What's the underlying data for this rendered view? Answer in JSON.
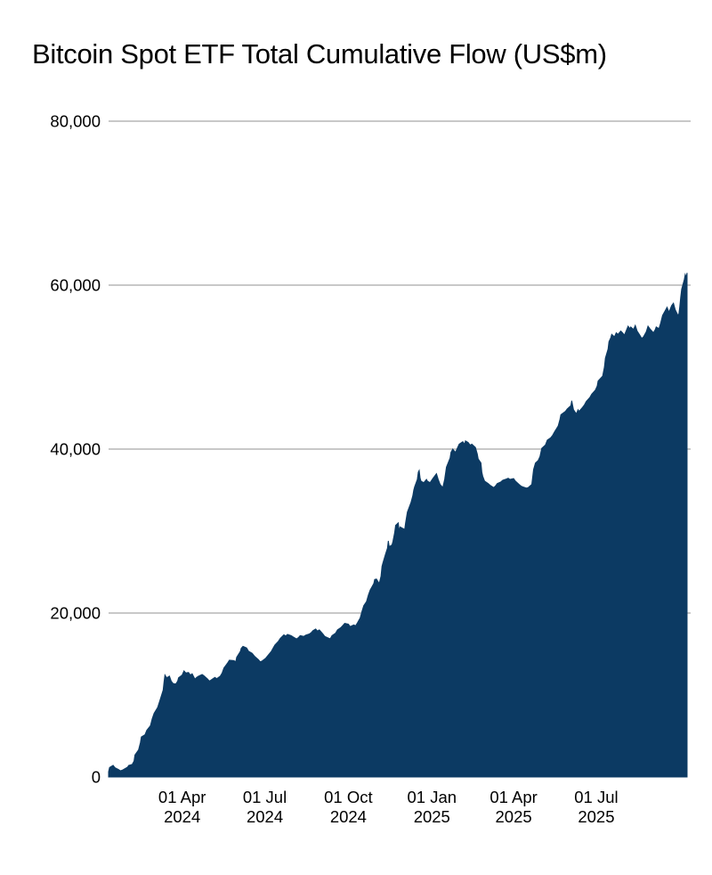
{
  "chart_data": {
    "type": "area",
    "title": "Bitcoin Spot ETF Total Cumulative Flow (US$m)",
    "xlabel": "",
    "ylabel": "",
    "ylim": [
      0,
      80000
    ],
    "x_domain": [
      "2024-01-09",
      "2025-10-10"
    ],
    "grid": "horizontal-only",
    "legend": "none",
    "colors": {
      "fill": "#0C3A63",
      "gridline": "#C8C8C8",
      "text": "#000000",
      "background": "#FFFFFF"
    },
    "y_ticks": [
      {
        "value": 80000,
        "label": "80,000"
      },
      {
        "value": 60000,
        "label": "60,000"
      },
      {
        "value": 40000,
        "label": "40,000"
      },
      {
        "value": 20000,
        "label": "20,000"
      },
      {
        "value": 0,
        "label": "0"
      }
    ],
    "x_ticks": [
      {
        "date": "2024-04-01",
        "line1": "01 Apr",
        "line2": "2024"
      },
      {
        "date": "2024-07-01",
        "line1": "01 Jul",
        "line2": "2024"
      },
      {
        "date": "2024-10-01",
        "line1": "01 Oct",
        "line2": "2024"
      },
      {
        "date": "2025-01-01",
        "line1": "01 Jan",
        "line2": "2025"
      },
      {
        "date": "2025-04-01",
        "line1": "01 Apr",
        "line2": "2025"
      },
      {
        "date": "2025-07-01",
        "line1": "01 Jul",
        "line2": "2025"
      }
    ],
    "series": [
      {
        "name": "Total cumulative flow (US$m)",
        "points": [
          [
            "2024-01-11",
            630
          ],
          [
            "2024-01-12",
            1160
          ],
          [
            "2024-01-16",
            1420
          ],
          [
            "2024-01-18",
            1130
          ],
          [
            "2024-01-22",
            900
          ],
          [
            "2024-01-24",
            760
          ],
          [
            "2024-01-26",
            830
          ],
          [
            "2024-01-30",
            1080
          ],
          [
            "2024-02-01",
            1220
          ],
          [
            "2024-02-02",
            1400
          ],
          [
            "2024-02-06",
            1540
          ],
          [
            "2024-02-08",
            1950
          ],
          [
            "2024-02-09",
            2680
          ],
          [
            "2024-02-13",
            3320
          ],
          [
            "2024-02-15",
            4220
          ],
          [
            "2024-02-16",
            4890
          ],
          [
            "2024-02-20",
            5150
          ],
          [
            "2024-02-22",
            5700
          ],
          [
            "2024-02-26",
            6250
          ],
          [
            "2024-02-28",
            7110
          ],
          [
            "2024-03-01",
            7760
          ],
          [
            "2024-03-05",
            8480
          ],
          [
            "2024-03-07",
            9190
          ],
          [
            "2024-03-11",
            10600
          ],
          [
            "2024-03-12",
            11600
          ],
          [
            "2024-03-13",
            12450
          ],
          [
            "2024-03-15",
            12100
          ],
          [
            "2024-03-18",
            12300
          ],
          [
            "2024-03-20",
            11700
          ],
          [
            "2024-03-22",
            11400
          ],
          [
            "2024-03-25",
            11350
          ],
          [
            "2024-03-27",
            11700
          ],
          [
            "2024-03-28",
            12100
          ],
          [
            "2024-04-01",
            12450
          ],
          [
            "2024-04-03",
            12950
          ],
          [
            "2024-04-05",
            12700
          ],
          [
            "2024-04-08",
            12750
          ],
          [
            "2024-04-10",
            12450
          ],
          [
            "2024-04-12",
            12600
          ],
          [
            "2024-04-15",
            11950
          ],
          [
            "2024-04-17",
            12150
          ],
          [
            "2024-04-19",
            12300
          ],
          [
            "2024-04-23",
            12500
          ],
          [
            "2024-04-25",
            12350
          ],
          [
            "2024-04-29",
            11950
          ],
          [
            "2024-05-01",
            11700
          ],
          [
            "2024-05-03",
            11850
          ],
          [
            "2024-05-07",
            12150
          ],
          [
            "2024-05-09",
            12000
          ],
          [
            "2024-05-13",
            12300
          ],
          [
            "2024-05-15",
            12700
          ],
          [
            "2024-05-17",
            13300
          ],
          [
            "2024-05-21",
            13900
          ],
          [
            "2024-05-23",
            14250
          ],
          [
            "2024-05-28",
            14200
          ],
          [
            "2024-05-30",
            14050
          ],
          [
            "2024-05-31",
            14600
          ],
          [
            "2024-06-04",
            15300
          ],
          [
            "2024-06-05",
            15700
          ],
          [
            "2024-06-07",
            15950
          ],
          [
            "2024-06-11",
            15750
          ],
          [
            "2024-06-13",
            15350
          ],
          [
            "2024-06-17",
            15100
          ],
          [
            "2024-06-20",
            14700
          ],
          [
            "2024-06-24",
            14300
          ],
          [
            "2024-06-26",
            14050
          ],
          [
            "2024-06-28",
            14150
          ],
          [
            "2024-07-02",
            14500
          ],
          [
            "2024-07-05",
            14900
          ],
          [
            "2024-07-08",
            15300
          ],
          [
            "2024-07-10",
            15700
          ],
          [
            "2024-07-12",
            16100
          ],
          [
            "2024-07-16",
            16550
          ],
          [
            "2024-07-18",
            16900
          ],
          [
            "2024-07-22",
            17350
          ],
          [
            "2024-07-24",
            17200
          ],
          [
            "2024-07-26",
            17400
          ],
          [
            "2024-07-30",
            17250
          ],
          [
            "2024-08-01",
            17100
          ],
          [
            "2024-08-05",
            16850
          ],
          [
            "2024-08-07",
            17000
          ],
          [
            "2024-08-09",
            17250
          ],
          [
            "2024-08-13",
            17150
          ],
          [
            "2024-08-15",
            17300
          ],
          [
            "2024-08-19",
            17450
          ],
          [
            "2024-08-21",
            17600
          ],
          [
            "2024-08-23",
            17850
          ],
          [
            "2024-08-26",
            18050
          ],
          [
            "2024-08-28",
            17800
          ],
          [
            "2024-08-30",
            17950
          ],
          [
            "2024-09-03",
            17450
          ],
          [
            "2024-09-05",
            17150
          ],
          [
            "2024-09-09",
            16950
          ],
          [
            "2024-09-11",
            16850
          ],
          [
            "2024-09-13",
            17250
          ],
          [
            "2024-09-17",
            17550
          ],
          [
            "2024-09-19",
            17950
          ],
          [
            "2024-09-23",
            18250
          ],
          [
            "2024-09-25",
            18500
          ],
          [
            "2024-09-27",
            18750
          ],
          [
            "2024-10-01",
            18650
          ],
          [
            "2024-10-03",
            18350
          ],
          [
            "2024-10-07",
            18550
          ],
          [
            "2024-10-09",
            18450
          ],
          [
            "2024-10-11",
            18800
          ],
          [
            "2024-10-14",
            19400
          ],
          [
            "2024-10-16",
            20200
          ],
          [
            "2024-10-18",
            20900
          ],
          [
            "2024-10-21",
            21400
          ],
          [
            "2024-10-23",
            22200
          ],
          [
            "2024-10-25",
            22800
          ],
          [
            "2024-10-29",
            23600
          ],
          [
            "2024-10-30",
            24100
          ],
          [
            "2024-11-01",
            24150
          ],
          [
            "2024-11-04",
            23600
          ],
          [
            "2024-11-06",
            24500
          ],
          [
            "2024-11-07",
            25700
          ],
          [
            "2024-11-08",
            26100
          ],
          [
            "2024-11-11",
            27200
          ],
          [
            "2024-11-13",
            27900
          ],
          [
            "2024-11-14",
            28800
          ],
          [
            "2024-11-15",
            28100
          ],
          [
            "2024-11-18",
            28300
          ],
          [
            "2024-11-19",
            28700
          ],
          [
            "2024-11-21",
            29800
          ],
          [
            "2024-11-22",
            30700
          ],
          [
            "2024-11-25",
            31000
          ],
          [
            "2024-11-26",
            30000
          ],
          [
            "2024-11-27",
            30500
          ],
          [
            "2024-12-02",
            30200
          ],
          [
            "2024-12-03",
            31000
          ],
          [
            "2024-12-05",
            32300
          ],
          [
            "2024-12-09",
            33500
          ],
          [
            "2024-12-11",
            34300
          ],
          [
            "2024-12-12",
            35000
          ],
          [
            "2024-12-13",
            35400
          ],
          [
            "2024-12-16",
            36300
          ],
          [
            "2024-12-17",
            37200
          ],
          [
            "2024-12-18",
            37400
          ],
          [
            "2024-12-19",
            36500
          ],
          [
            "2024-12-20",
            36100
          ],
          [
            "2024-12-23",
            35900
          ],
          [
            "2024-12-26",
            36300
          ],
          [
            "2024-12-27",
            36100
          ],
          [
            "2024-12-30",
            35900
          ],
          [
            "2025-01-02",
            36400
          ],
          [
            "2025-01-06",
            37000
          ],
          [
            "2025-01-08",
            36300
          ],
          [
            "2025-01-10",
            35700
          ],
          [
            "2025-01-13",
            35300
          ],
          [
            "2025-01-15",
            36300
          ],
          [
            "2025-01-17",
            37800
          ],
          [
            "2025-01-21",
            38900
          ],
          [
            "2025-01-22",
            39600
          ],
          [
            "2025-01-24",
            40000
          ],
          [
            "2025-01-27",
            39600
          ],
          [
            "2025-01-29",
            40100
          ],
          [
            "2025-01-31",
            40600
          ],
          [
            "2025-02-04",
            40900
          ],
          [
            "2025-02-06",
            40600
          ],
          [
            "2025-02-07",
            41000
          ],
          [
            "2025-02-10",
            40800
          ],
          [
            "2025-02-12",
            40500
          ],
          [
            "2025-02-14",
            40600
          ],
          [
            "2025-02-18",
            40200
          ],
          [
            "2025-02-20",
            39400
          ],
          [
            "2025-02-21",
            38800
          ],
          [
            "2025-02-24",
            38300
          ],
          [
            "2025-02-25",
            37200
          ],
          [
            "2025-02-26",
            36700
          ],
          [
            "2025-02-28",
            36100
          ],
          [
            "2025-03-04",
            35800
          ],
          [
            "2025-03-06",
            35600
          ],
          [
            "2025-03-10",
            35300
          ],
          [
            "2025-03-12",
            35500
          ],
          [
            "2025-03-14",
            35800
          ],
          [
            "2025-03-18",
            36000
          ],
          [
            "2025-03-20",
            36200
          ],
          [
            "2025-03-24",
            36350
          ],
          [
            "2025-03-26",
            36450
          ],
          [
            "2025-03-28",
            36300
          ],
          [
            "2025-04-01",
            36400
          ],
          [
            "2025-04-03",
            36100
          ],
          [
            "2025-04-07",
            35700
          ],
          [
            "2025-04-09",
            35500
          ],
          [
            "2025-04-11",
            35400
          ],
          [
            "2025-04-15",
            35250
          ],
          [
            "2025-04-17",
            35300
          ],
          [
            "2025-04-21",
            35700
          ],
          [
            "2025-04-22",
            36600
          ],
          [
            "2025-04-23",
            37500
          ],
          [
            "2025-04-25",
            38300
          ],
          [
            "2025-04-28",
            38600
          ],
          [
            "2025-04-30",
            39100
          ],
          [
            "2025-05-02",
            40100
          ],
          [
            "2025-05-06",
            40500
          ],
          [
            "2025-05-08",
            41100
          ],
          [
            "2025-05-12",
            41400
          ],
          [
            "2025-05-14",
            41700
          ],
          [
            "2025-05-16",
            42100
          ],
          [
            "2025-05-20",
            42800
          ],
          [
            "2025-05-22",
            43600
          ],
          [
            "2025-05-23",
            44200
          ],
          [
            "2025-05-28",
            44600
          ],
          [
            "2025-05-30",
            44900
          ],
          [
            "2025-06-03",
            45300
          ],
          [
            "2025-06-04",
            45900
          ],
          [
            "2025-06-06",
            44800
          ],
          [
            "2025-06-09",
            44300
          ],
          [
            "2025-06-11",
            44800
          ],
          [
            "2025-06-12",
            44600
          ],
          [
            "2025-06-16",
            45100
          ],
          [
            "2025-06-18",
            45400
          ],
          [
            "2025-06-20",
            45800
          ],
          [
            "2025-06-24",
            46300
          ],
          [
            "2025-06-26",
            46700
          ],
          [
            "2025-06-30",
            47200
          ],
          [
            "2025-07-02",
            47700
          ],
          [
            "2025-07-03",
            48300
          ],
          [
            "2025-07-08",
            48900
          ],
          [
            "2025-07-10",
            50000
          ],
          [
            "2025-07-11",
            51100
          ],
          [
            "2025-07-14",
            52200
          ],
          [
            "2025-07-15",
            53100
          ],
          [
            "2025-07-17",
            53600
          ],
          [
            "2025-07-18",
            54000
          ],
          [
            "2025-07-21",
            53700
          ],
          [
            "2025-07-23",
            54200
          ],
          [
            "2025-07-25",
            54000
          ],
          [
            "2025-07-28",
            54400
          ],
          [
            "2025-07-30",
            54200
          ],
          [
            "2025-08-01",
            53900
          ],
          [
            "2025-08-05",
            55000
          ],
          [
            "2025-08-07",
            54700
          ],
          [
            "2025-08-08",
            54900
          ],
          [
            "2025-08-11",
            54600
          ],
          [
            "2025-08-13",
            55100
          ],
          [
            "2025-08-15",
            54400
          ],
          [
            "2025-08-18",
            53900
          ],
          [
            "2025-08-20",
            53500
          ],
          [
            "2025-08-22",
            53700
          ],
          [
            "2025-08-25",
            54300
          ],
          [
            "2025-08-27",
            55000
          ],
          [
            "2025-08-29",
            54700
          ],
          [
            "2025-09-02",
            54200
          ],
          [
            "2025-09-04",
            54600
          ],
          [
            "2025-09-05",
            54900
          ],
          [
            "2025-09-08",
            54700
          ],
          [
            "2025-09-10",
            55400
          ],
          [
            "2025-09-12",
            56300
          ],
          [
            "2025-09-15",
            56900
          ],
          [
            "2025-09-17",
            57300
          ],
          [
            "2025-09-18",
            57000
          ],
          [
            "2025-09-19",
            56700
          ],
          [
            "2025-09-22",
            57500
          ],
          [
            "2025-09-24",
            57800
          ],
          [
            "2025-09-26",
            57000
          ],
          [
            "2025-09-29",
            56300
          ],
          [
            "2025-09-30",
            56500
          ],
          [
            "2025-10-01",
            57400
          ],
          [
            "2025-10-02",
            58500
          ],
          [
            "2025-10-03",
            59500
          ],
          [
            "2025-10-06",
            60700
          ],
          [
            "2025-10-07",
            61300
          ],
          [
            "2025-10-08",
            61000
          ],
          [
            "2025-10-09",
            61500
          ]
        ]
      }
    ]
  }
}
